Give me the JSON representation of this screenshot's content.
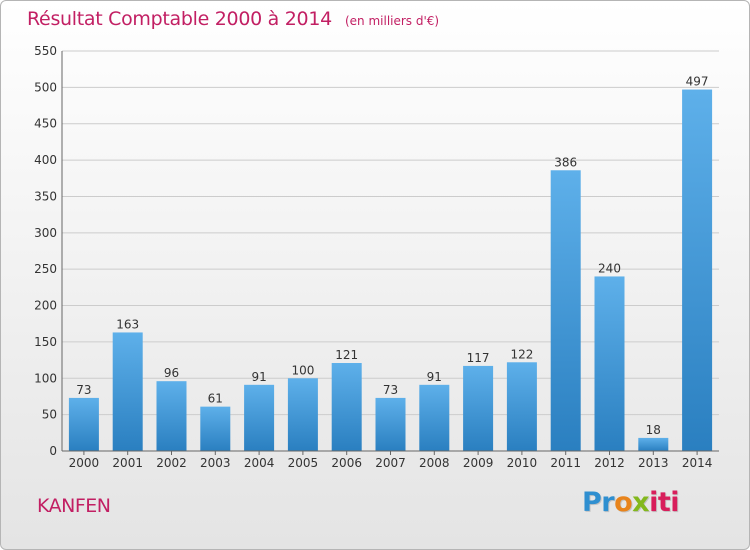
{
  "title": "Résultat Comptable 2000 à 2014",
  "subtitle": "(en milliers d'€)",
  "commune": "KANFEN",
  "logo": {
    "p1": "Pr",
    "p2": "o",
    "p3": "x",
    "p4": "iti"
  },
  "colors": {
    "bar_light": "#5eb0ea",
    "bar_dark": "#2a7fc0",
    "title": "#c21f63",
    "grid": "#cccccc"
  },
  "chart_data": {
    "type": "bar",
    "categories": [
      "2000",
      "2001",
      "2002",
      "2003",
      "2004",
      "2005",
      "2006",
      "2007",
      "2008",
      "2009",
      "2010",
      "2011",
      "2012",
      "2013",
      "2014"
    ],
    "values": [
      73,
      163,
      96,
      61,
      91,
      100,
      121,
      73,
      91,
      117,
      122,
      386,
      240,
      18,
      497
    ],
    "title": "Résultat Comptable 2000 à 2014",
    "subtitle": "(en milliers d'€)",
    "ylim": [
      0,
      550
    ],
    "yticks": [
      0,
      50,
      100,
      150,
      200,
      250,
      300,
      350,
      400,
      450,
      500,
      550
    ],
    "grid": true
  }
}
